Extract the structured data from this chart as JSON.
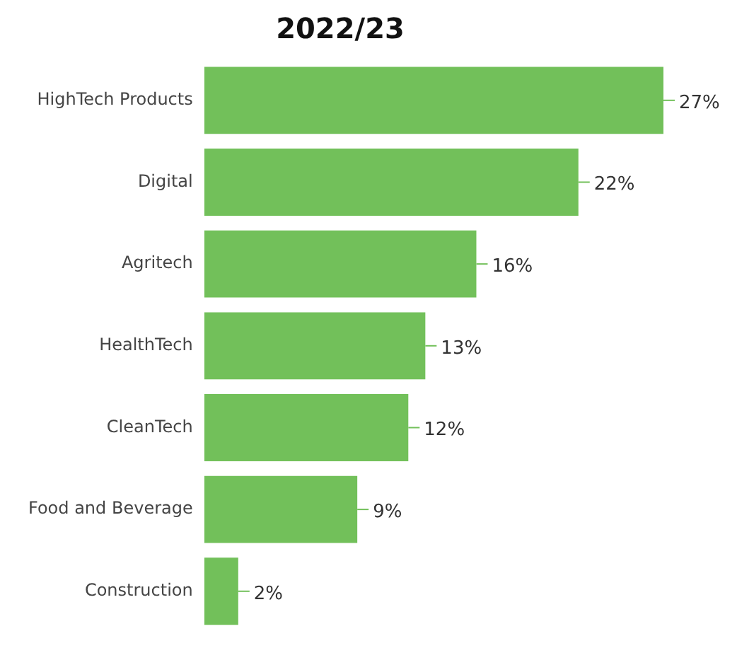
{
  "chart_data": {
    "type": "bar",
    "orientation": "horizontal",
    "title": "2022/23",
    "categories": [
      "HighTech Products",
      "Digital",
      "Agritech",
      "HealthTech",
      "CleanTech",
      "Food and Beverage",
      "Construction"
    ],
    "values": [
      27,
      22,
      16,
      13,
      12,
      9,
      2
    ],
    "value_labels": [
      "27%",
      "22%",
      "16%",
      "13%",
      "12%",
      "9%",
      "2%"
    ],
    "color": "#72c05a",
    "grid": false,
    "legend": false
  }
}
